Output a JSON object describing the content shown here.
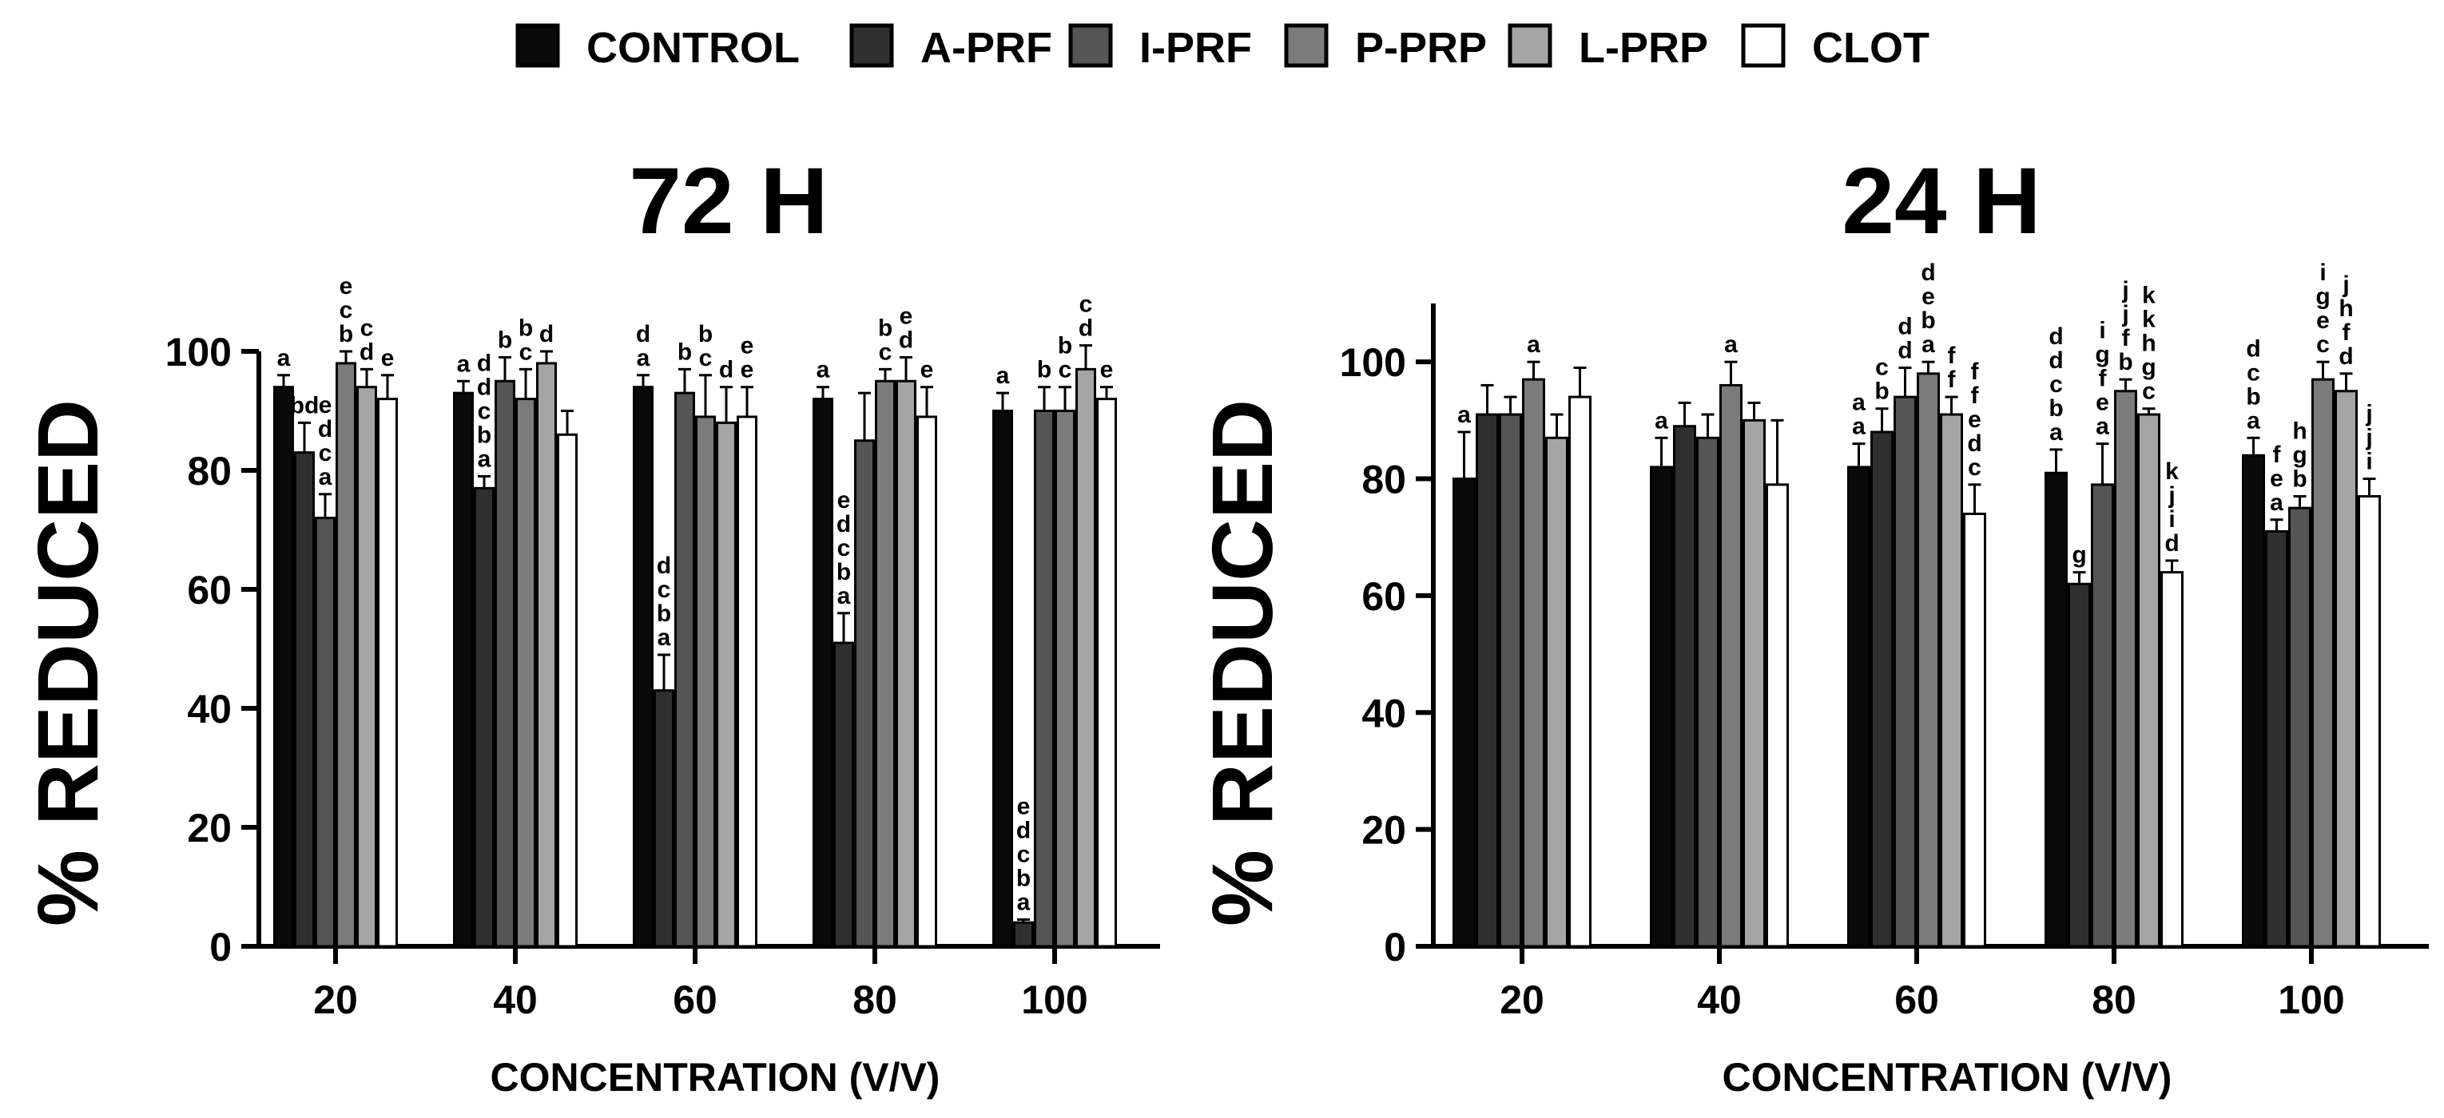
{
  "chart_data": [
    {
      "type": "bar",
      "title": "72 H",
      "xlabel": "CONCENTRATION (V/V)",
      "ylabel": "% REDUCED",
      "ylim": [
        0,
        100
      ],
      "yticks": [
        "0",
        "20",
        "40",
        "60",
        "80",
        "100"
      ],
      "categories": [
        "20",
        "40",
        "60",
        "80",
        "100"
      ],
      "series": [
        {
          "name": "CONTROL",
          "values": [
            94,
            93,
            94,
            92,
            90
          ],
          "errors": [
            2,
            2,
            2,
            2,
            3
          ],
          "sig": [
            "a",
            "a",
            "a",
            "a",
            "a"
          ]
        },
        {
          "name": "A-PRF",
          "values": [
            83,
            77,
            43,
            51,
            4
          ],
          "errors": [
            5,
            2,
            6,
            5,
            0.5
          ],
          "sig": [
            "bd",
            "d c b a",
            "d c b a",
            "e d c b a",
            "e d c b a"
          ]
        },
        {
          "name": "I-PRF",
          "values": [
            72,
            95,
            93,
            85,
            90
          ],
          "errors": [
            4,
            4,
            4,
            8,
            4
          ],
          "sig": [
            "e d c a",
            "b",
            "b",
            "",
            "b"
          ]
        },
        {
          "name": "P-PRP",
          "values": [
            98,
            92,
            89,
            95,
            90
          ],
          "errors": [
            2,
            5,
            7,
            2,
            4
          ],
          "sig": [
            "c b",
            "c",
            "c",
            "b c",
            "c"
          ]
        },
        {
          "name": "L-PRP",
          "values": [
            94,
            98,
            88,
            95,
            97
          ],
          "errors": [
            3,
            2,
            6,
            4,
            4
          ],
          "sig": [
            "d",
            "d",
            "d",
            "d",
            "d"
          ]
        },
        {
          "name": "CLOT",
          "values": [
            92,
            86,
            89,
            89,
            92
          ],
          "errors": [
            4,
            4,
            5,
            5,
            2
          ],
          "sig": [
            "e",
            "",
            "e",
            "e",
            "e"
          ]
        }
      ]
    },
    {
      "type": "bar",
      "title": "24 H",
      "xlabel": "CONCENTRATION (V/V)",
      "ylabel": "% REDUCED",
      "ylim": [
        0,
        110
      ],
      "yticks": [
        "0",
        "20",
        "40",
        "60",
        "80",
        "100"
      ],
      "categories": [
        "20",
        "40",
        "60",
        "80",
        "100"
      ],
      "series": [
        {
          "name": "CONTROL",
          "values": [
            80,
            82,
            82,
            81,
            84
          ],
          "errors": [
            8,
            5,
            4,
            4,
            3
          ],
          "sig": [
            "",
            "",
            "a",
            "d c b a",
            "d c b a"
          ]
        },
        {
          "name": "A-PRF",
          "values": [
            91,
            89,
            88,
            62,
            71
          ],
          "errors": [
            5,
            4,
            4,
            2,
            2
          ],
          "sig": [
            "",
            "",
            "c b",
            "",
            "f e a"
          ]
        },
        {
          "name": "I-PRF",
          "values": [
            91,
            87,
            94,
            79,
            75
          ],
          "errors": [
            3,
            4,
            5,
            7,
            2
          ],
          "sig": [
            "",
            "",
            "d",
            "g f e a",
            "h g b"
          ]
        },
        {
          "name": "P-PRP",
          "values": [
            97,
            96,
            98,
            95,
            97
          ],
          "errors": [
            3,
            4,
            2,
            2,
            3
          ],
          "sig": [
            "a",
            "a",
            "e b a",
            "j f b",
            "i g e c"
          ]
        },
        {
          "name": "L-PRP",
          "values": [
            87,
            90,
            91,
            91,
            95
          ],
          "errors": [
            4,
            3,
            3,
            1,
            3
          ],
          "sig": [
            "",
            "",
            "f",
            "k h g c",
            "j h f d"
          ]
        },
        {
          "name": "CLOT",
          "values": [
            94,
            79,
            74,
            64,
            77
          ],
          "errors": [
            5,
            11,
            5,
            2,
            3
          ],
          "sig": [
            "",
            "",
            "f e d c",
            "k j i d",
            "j i"
          ]
        }
      ]
    }
  ],
  "legend": {
    "items": [
      {
        "name": "CONTROL",
        "color": "#0a0a0a"
      },
      {
        "name": "A-PRF",
        "color": "#2f2f2f"
      },
      {
        "name": "I-PRF",
        "color": "#555555"
      },
      {
        "name": "P-PRP",
        "color": "#7b7b7b"
      },
      {
        "name": "L-PRP",
        "color": "#a5a5a5"
      },
      {
        "name": "CLOT",
        "color": "#ffffff"
      }
    ]
  },
  "extra_labels": {
    "panel_72h": [
      {
        "cat": 0,
        "series": 4,
        "text": "c"
      },
      {
        "cat": 0,
        "series": 3,
        "text": "e"
      },
      {
        "cat": 1,
        "series": 1,
        "text": "d"
      },
      {
        "cat": 1,
        "series": 3,
        "text": "b"
      },
      {
        "cat": 2,
        "series": 0,
        "text": "d"
      },
      {
        "cat": 2,
        "series": 3,
        "text": "b"
      },
      {
        "cat": 2,
        "series": 5,
        "text": "e"
      },
      {
        "cat": 3,
        "series": 4,
        "text": "e"
      },
      {
        "cat": 4,
        "series": 3,
        "text": "b"
      },
      {
        "cat": 4,
        "series": 4,
        "text": "c"
      }
    ],
    "panel_24h": [
      {
        "cat": 0,
        "series": 0,
        "text": "a"
      },
      {
        "cat": 1,
        "series": 0,
        "text": "a"
      },
      {
        "cat": 2,
        "series": 0,
        "text": "a"
      },
      {
        "cat": 2,
        "series": 2,
        "text": "d"
      },
      {
        "cat": 2,
        "series": 3,
        "text": "d"
      },
      {
        "cat": 2,
        "series": 4,
        "text": "f"
      },
      {
        "cat": 2,
        "series": 5,
        "text": "f"
      },
      {
        "cat": 3,
        "series": 0,
        "text": "d"
      },
      {
        "cat": 3,
        "series": 1,
        "text": "g"
      },
      {
        "cat": 3,
        "series": 2,
        "text": "i"
      },
      {
        "cat": 3,
        "series": 3,
        "text": "j"
      },
      {
        "cat": 3,
        "series": 4,
        "text": "k"
      },
      {
        "cat": 4,
        "series": 5,
        "text": "j"
      }
    ]
  }
}
